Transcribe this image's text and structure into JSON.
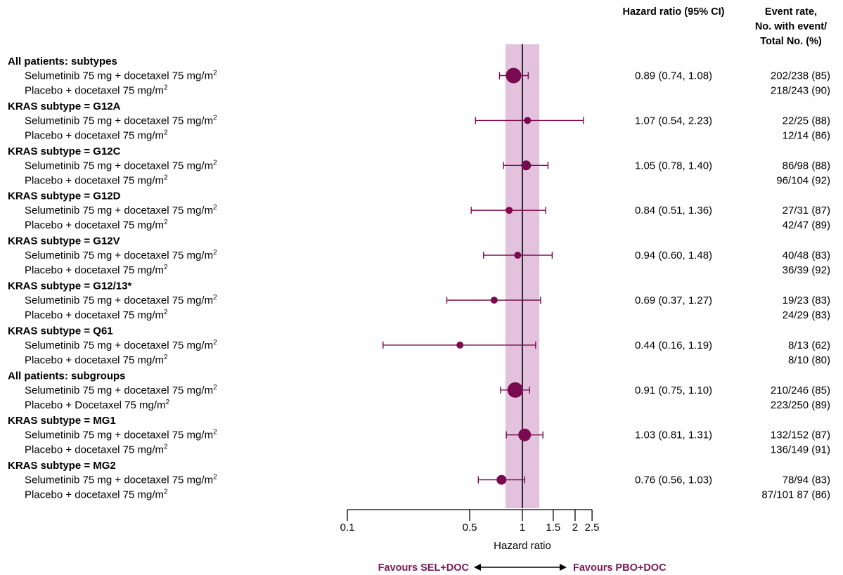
{
  "chart_data": {
    "type": "forest",
    "xaxis": {
      "label": "Hazard ratio",
      "scale": "log",
      "ticks": [
        0.1,
        0.5,
        1,
        1.5,
        2,
        2.5
      ],
      "tick_labels": [
        "0.1",
        "0.5",
        "1",
        "1.5",
        "2",
        "2.5"
      ],
      "range": [
        0.1,
        2.5
      ]
    },
    "reference_line": 1,
    "shaded_band": [
      0.8,
      1.25
    ],
    "colors": {
      "marker": "#7a0a4f",
      "band": "#e2c2dc",
      "favours": "#7a1a5a"
    },
    "headers": {
      "hr": "Hazard ratio (95% CI)",
      "event_rate": [
        "Event rate,",
        "No. with event/",
        "Total No. (%)"
      ]
    },
    "favours_left": "Favours SEL+DOC",
    "favours_right": "Favours PBO+DOC",
    "groups": [
      {
        "title": "All patients: subtypes",
        "sel_label": "Selumetinib 75 mg + docetaxel 75 mg/m",
        "pbo_label": "Placebo + docetaxel 75 mg/m",
        "hr": 0.89,
        "lo": 0.74,
        "hi": 1.08,
        "hr_text": "0.89 (0.74, 1.08)",
        "sel_rate": "202/238 (85)",
        "pbo_rate": "218/243 (90)",
        "size": "large"
      },
      {
        "title": "KRAS subtype = G12A",
        "sel_label": "Selumetinib 75 mg + docetaxel 75 mg/m",
        "pbo_label": "Placebo + docetaxel 75 mg/m",
        "hr": 1.07,
        "lo": 0.54,
        "hi": 2.23,
        "hr_text": "1.07 (0.54, 2.23)",
        "sel_rate": "22/25 (88)",
        "pbo_rate": "12/14 (86)",
        "size": "small"
      },
      {
        "title": "KRAS subtype = G12C",
        "sel_label": "Selumetinib 75 mg + docetaxel 75 mg/m",
        "pbo_label": "Placebo + docetaxel 75 mg/m",
        "hr": 1.05,
        "lo": 0.78,
        "hi": 1.4,
        "hr_text": "1.05 (0.78, 1.40)",
        "sel_rate": "86/98 (88)",
        "pbo_rate": "96/104 (92)",
        "size": "medium"
      },
      {
        "title": "KRAS subtype = G12D",
        "sel_label": "Selumetinib 75 mg + docetaxel 75 mg/m",
        "pbo_label": "Placebo + docetaxel 75 mg/m",
        "hr": 0.84,
        "lo": 0.51,
        "hi": 1.36,
        "hr_text": "0.84 (0.51, 1.36)",
        "sel_rate": "27/31 (87)",
        "pbo_rate": "42/47 (89)",
        "size": "small"
      },
      {
        "title": "KRAS subtype = G12V",
        "sel_label": "Selumetinib 75 mg + docetaxel 75 mg/m",
        "pbo_label": "Placebo + docetaxel 75 mg/m",
        "hr": 0.94,
        "lo": 0.6,
        "hi": 1.48,
        "hr_text": "0.94 (0.60, 1.48)",
        "sel_rate": "40/48 (83)",
        "pbo_rate": "36/39 (92)",
        "size": "small"
      },
      {
        "title": "KRAS subtype = G12/13*",
        "sel_label": "Selumetinib 75 mg + docetaxel 75 mg/m",
        "pbo_label": "Placebo + docetaxel 75 mg/m",
        "hr": 0.69,
        "lo": 0.37,
        "hi": 1.27,
        "hr_text": "0.69 (0.37, 1.27)",
        "sel_rate": "19/23 (83)",
        "pbo_rate": "24/29 (83)",
        "size": "small"
      },
      {
        "title": "KRAS subtype = Q61",
        "sel_label": "Selumetinib 75 mg + docetaxel 75 mg/m",
        "pbo_label": "Placebo + docetaxel 75 mg/m",
        "hr": 0.44,
        "lo": 0.16,
        "hi": 1.19,
        "hr_text": "0.44 (0.16, 1.19)",
        "sel_rate": "8/13 (62)",
        "pbo_rate": "8/10 (80)",
        "size": "small"
      },
      {
        "title": "All patients: subgroups",
        "sel_label": "Selumetinib 75 mg + docetaxel 75 mg/m",
        "pbo_label": "Placebo + Docetaxel 75 mg/m",
        "hr": 0.91,
        "lo": 0.75,
        "hi": 1.1,
        "hr_text": "0.91 (0.75, 1.10)",
        "sel_rate": "210/246 (85)",
        "pbo_rate": "223/250 (89)",
        "size": "large"
      },
      {
        "title": "KRAS subtype = MG1",
        "sel_label": "Selumetinib 75 mg + docetaxel 75 mg/m",
        "pbo_label": "Placebo + docetaxel 75 mg/m",
        "hr": 1.03,
        "lo": 0.81,
        "hi": 1.31,
        "hr_text": "1.03 (0.81, 1.31)",
        "sel_rate": "132/152 (87)",
        "pbo_rate": "136/149 (91)",
        "size": "medlarge"
      },
      {
        "title": "KRAS subtype = MG2",
        "sel_label": "Selumetinib 75 mg + docetaxel 75 mg/m",
        "pbo_label": "Placebo + docetaxel 75 mg/m",
        "hr": 0.76,
        "lo": 0.56,
        "hi": 1.03,
        "hr_text": "0.76 (0.56, 1.03)",
        "sel_rate": "78/94 (83)",
        "pbo_rate": "87/101 87 (86)",
        "size": "medium"
      }
    ],
    "superscript": "2"
  }
}
